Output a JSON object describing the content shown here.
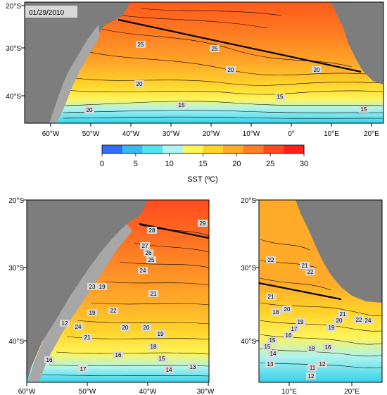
{
  "date_label": "01/29/2010",
  "colorbar": {
    "title": "SST (ºC)",
    "ticks": [
      "0",
      "5",
      "10",
      "15",
      "20",
      "25",
      "30"
    ],
    "stops": [
      "#2f6ff5",
      "#39b8f3",
      "#4fe6ee",
      "#aef3ef",
      "#fff45a",
      "#ffd42a",
      "#ffaa28",
      "#ff7f24",
      "#ff4a1f",
      "#ff1f19"
    ]
  },
  "colors": {
    "land": "#7d7d7d",
    "shelf": "#a7a7a7",
    "frame": "#000000",
    "warm": "#ff5a1c",
    "cold": "#36d2ea"
  },
  "main_map": {
    "lat_labels": [
      "20°S",
      "30°S",
      "40°S"
    ],
    "lon_labels": [
      "60°W",
      "50°W",
      "40°W",
      "30°W",
      "20°W",
      "10°W",
      "0°",
      "10°E",
      "20°E"
    ],
    "contour_labels": [
      "25",
      "25",
      "20",
      "20",
      "20",
      "20",
      "15",
      "15",
      "15"
    ]
  },
  "sw_map": {
    "lat_labels": [
      "20°S",
      "30°S",
      "40°S"
    ],
    "lon_labels": [
      "60°W",
      "50°W",
      "40°W",
      "30°W"
    ],
    "contour_labels": [
      "28",
      "29",
      "27",
      "26",
      "25",
      "24",
      "23",
      "22",
      "21",
      "20",
      "20",
      "19",
      "18",
      "17",
      "16",
      "15",
      "14",
      "13",
      "12",
      "24",
      "21",
      "19",
      "19",
      "16"
    ]
  },
  "se_map": {
    "lat_labels": [
      "20°S",
      "30°S",
      "40°S"
    ],
    "lon_labels": [
      "10°E",
      "20°E"
    ],
    "contour_labels": [
      "22",
      "21",
      "22",
      "20",
      "21",
      "18",
      "19",
      "17",
      "16",
      "15",
      "15",
      "14",
      "13",
      "12",
      "11",
      "19",
      "20",
      "21",
      "22",
      "24",
      "12",
      "18",
      "16"
    ]
  }
}
